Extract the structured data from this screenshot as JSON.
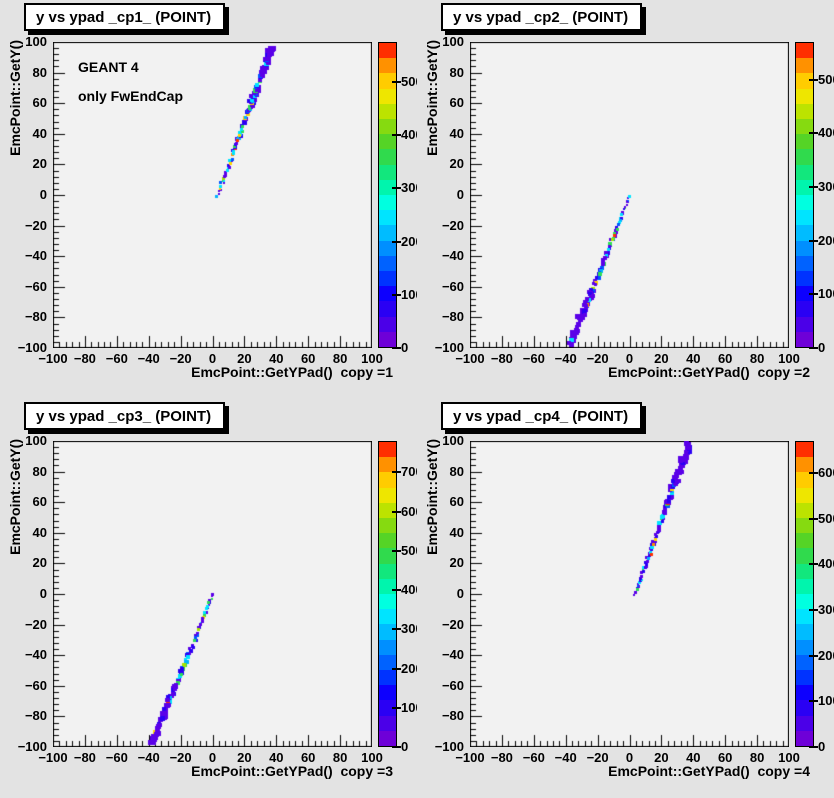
{
  "canvas": {
    "background": "#e3e3e3",
    "frame_background": "#f2f2f2",
    "titlebox_background": "#ffffff",
    "text_color": "#000000"
  },
  "palette_colors": [
    "#6e00d8",
    "#4b00e8",
    "#2a00f4",
    "#0d00fe",
    "#0033ff",
    "#0062ff",
    "#008fff",
    "#00bcff",
    "#00e4ff",
    "#00ffe0",
    "#00f5ad",
    "#12e77d",
    "#30da4d",
    "#55d426",
    "#86da10",
    "#bce300",
    "#eee600",
    "#ffcc00",
    "#ff9100",
    "#ff2e00"
  ],
  "point_palette": {
    "colors": [
      "#5a00e8",
      "#2a00f4",
      "#0057ff",
      "#00b2ff",
      "#00e4ff",
      "#2edd57",
      "#a6e300",
      "#ffd300",
      "#ff9100",
      "#ff2e00"
    ],
    "weights": [
      0.38,
      0.2,
      0.08,
      0.07,
      0.11,
      0.09,
      0.03,
      0.02,
      0.01,
      0.01
    ]
  },
  "chart_data": [
    {
      "type": "scatter",
      "title": "y vs ypad _cp1_ (POINT)",
      "x_axis_title": "EmcPoint::GetYPad()  copy =1",
      "y_axis_title": "EmcPoint::GetY()",
      "annotations": [
        "GEANT 4",
        "only FwEndCap"
      ],
      "x_range": [
        -100,
        100
      ],
      "y_range": [
        -100,
        100
      ],
      "x_ticks": [
        -100,
        -80,
        -60,
        -40,
        -20,
        0,
        20,
        40,
        60,
        80,
        100
      ],
      "y_ticks": [
        -100,
        -80,
        -60,
        -40,
        -20,
        0,
        20,
        40,
        60,
        80,
        100
      ],
      "z_ticks": [
        0,
        100,
        200,
        300,
        400,
        500
      ],
      "z_max": 575,
      "band": {
        "x_start": 3.5,
        "y_start": 0,
        "x_end": 37,
        "y_end": 96
      },
      "hot_points": [
        {
          "x": 15.5,
          "y": 36,
          "color": "#ff2e00"
        },
        {
          "x": 16.5,
          "y": 39,
          "color": "#ffd300"
        },
        {
          "x": 23,
          "y": 57,
          "color": "#2edd57"
        }
      ],
      "seed": 7
    },
    {
      "type": "scatter",
      "title": "y vs ypad _cp2_ (POINT)",
      "x_axis_title": "EmcPoint::GetYPad()  copy =2",
      "y_axis_title": "EmcPoint::GetY()",
      "annotations": [],
      "x_range": [
        -100,
        100
      ],
      "y_range": [
        -100,
        100
      ],
      "x_ticks": [
        -100,
        -80,
        -60,
        -40,
        -20,
        0,
        20,
        40,
        60,
        80,
        100
      ],
      "y_ticks": [
        -100,
        -80,
        -60,
        -40,
        -20,
        0,
        20,
        40,
        60,
        80,
        100
      ],
      "z_ticks": [
        0,
        100,
        200,
        300,
        400,
        500
      ],
      "z_max": 570,
      "band": {
        "x_start": 0.5,
        "y_start": 0,
        "x_end": -37,
        "y_end": -98
      },
      "hot_points": [
        {
          "x": -10,
          "y": -26,
          "color": "#ff2e00"
        },
        {
          "x": -11,
          "y": -29,
          "color": "#a6e300"
        }
      ],
      "seed": 13
    },
    {
      "type": "scatter",
      "title": "y vs ypad _cp3_ (POINT)",
      "x_axis_title": "EmcPoint::GetYPad()  copy =3",
      "y_axis_title": "EmcPoint::GetY()",
      "annotations": [],
      "x_range": [
        -100,
        100
      ],
      "y_range": [
        -100,
        100
      ],
      "x_ticks": [
        -100,
        -80,
        -60,
        -40,
        -20,
        0,
        20,
        40,
        60,
        80,
        100
      ],
      "y_ticks": [
        -100,
        -80,
        -60,
        -40,
        -20,
        0,
        20,
        40,
        60,
        80,
        100
      ],
      "z_ticks": [
        0,
        100,
        200,
        300,
        400,
        500,
        600,
        700
      ],
      "z_max": 780,
      "band": {
        "x_start": 0.5,
        "y_start": 0,
        "x_end": -38,
        "y_end": -98
      },
      "hot_points": [
        {
          "x": -20,
          "y": -52,
          "color": "#2edd57"
        },
        {
          "x": -16,
          "y": -41,
          "color": "#00e4ff"
        }
      ],
      "seed": 21
    },
    {
      "type": "scatter",
      "title": "y vs ypad _cp4_ (POINT)",
      "x_axis_title": "EmcPoint::GetYPad()  copy =4",
      "y_axis_title": "EmcPoint::GetY()",
      "annotations": [],
      "x_range": [
        -100,
        100
      ],
      "y_range": [
        -100,
        100
      ],
      "x_ticks": [
        -100,
        -80,
        -60,
        -40,
        -20,
        0,
        20,
        40,
        60,
        80,
        100
      ],
      "y_ticks": [
        -100,
        -80,
        -60,
        -40,
        -20,
        0,
        20,
        40,
        60,
        80,
        100
      ],
      "z_ticks": [
        0,
        100,
        200,
        300,
        400,
        500,
        600
      ],
      "z_max": 670,
      "band": {
        "x_start": 3.5,
        "y_start": 0,
        "x_end": 37,
        "y_end": 97
      },
      "hot_points": [
        {
          "x": 13.5,
          "y": 26,
          "color": "#ff2e00"
        },
        {
          "x": 15,
          "y": 33,
          "color": "#ff9100"
        },
        {
          "x": 16,
          "y": 36,
          "color": "#ffd300"
        }
      ],
      "seed": 29
    }
  ]
}
